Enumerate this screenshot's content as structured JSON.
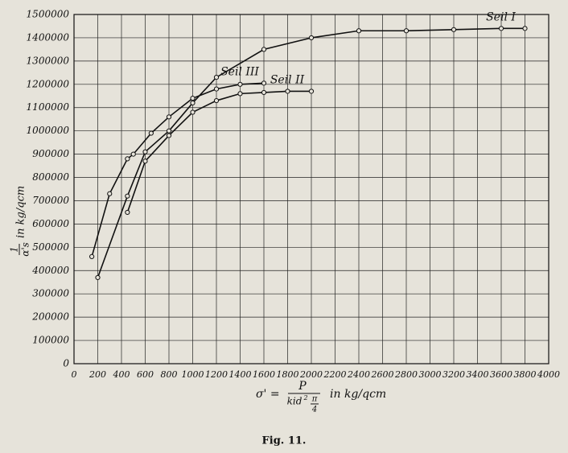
{
  "chart_data": {
    "type": "line",
    "caption": "Fig. 11.",
    "y_label": {
      "numerator": "1",
      "denominator": "α's",
      "unit": "in kg/qcm"
    },
    "x_label": {
      "symbol": "σ' =",
      "numerator": "P",
      "denominator": "kid",
      "exponent": "2",
      "pi": "π",
      "four": "4",
      "unit": "in kg/qcm"
    },
    "xlim": [
      0,
      4000
    ],
    "xticks": [
      0,
      200,
      400,
      600,
      800,
      1000,
      1200,
      1400,
      1600,
      1800,
      2000,
      2200,
      2400,
      2600,
      2800,
      3000,
      3200,
      3400,
      3600,
      3800,
      4000
    ],
    "ylim": [
      0,
      1500000
    ],
    "yticks": [
      0,
      100000,
      200000,
      300000,
      400000,
      500000,
      600000,
      700000,
      800000,
      900000,
      1000000,
      1100000,
      1200000,
      1300000,
      1400000,
      1500000
    ],
    "grid": true,
    "series": [
      {
        "name": "Seil I",
        "color": "#111111",
        "x": [
          200,
          450,
          600,
          800,
          1000,
          1200,
          1600,
          2000,
          2400,
          2800,
          3200,
          3600,
          3800
        ],
        "values": [
          370000,
          720000,
          910000,
          1000000,
          1120000,
          1230000,
          1350000,
          1400000,
          1430000,
          1430000,
          1435000,
          1440000,
          1440000
        ]
      },
      {
        "name": "Seil II",
        "color": "#111111",
        "x": [
          450,
          600,
          800,
          1000,
          1200,
          1400,
          1600,
          1800,
          2000
        ],
        "values": [
          650000,
          870000,
          980000,
          1080000,
          1130000,
          1160000,
          1165000,
          1170000,
          1170000
        ]
      },
      {
        "name": "Seil III",
        "color": "#111111",
        "x": [
          150,
          300,
          450,
          500,
          650,
          800,
          1000,
          1200,
          1400,
          1600
        ],
        "values": [
          460000,
          730000,
          880000,
          900000,
          990000,
          1060000,
          1140000,
          1180000,
          1200000,
          1205000
        ]
      }
    ]
  }
}
